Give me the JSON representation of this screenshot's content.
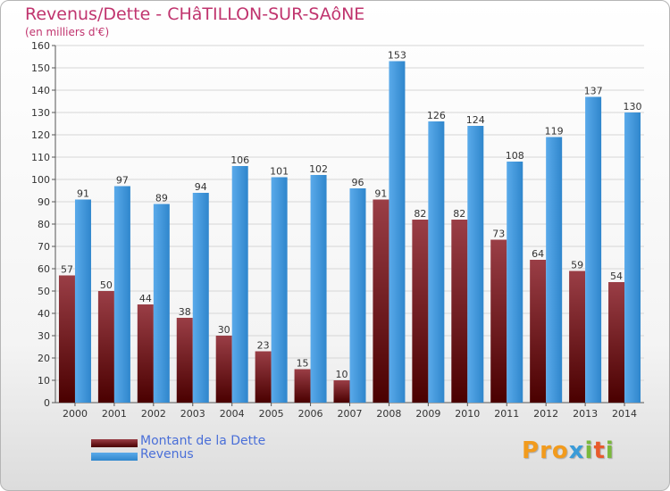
{
  "title": "Revenus/Dette - CHâTILLON-SUR-SAôNE",
  "subtitle": "(en milliers d'€)",
  "logo_text": "Proxiti",
  "colors": {
    "dette_light": "#9a3e46",
    "dette_dark": "#4a0000",
    "revenus_light": "#5aaaea",
    "revenus_dark": "#2f86cc",
    "grid": "#d6d6d6",
    "title": "#c0346e",
    "legend_text": "#4a6fd8"
  },
  "chart_data": {
    "type": "bar",
    "categories": [
      "2000",
      "2001",
      "2002",
      "2003",
      "2004",
      "2005",
      "2006",
      "2007",
      "2008",
      "2009",
      "2010",
      "2011",
      "2012",
      "2013",
      "2014"
    ],
    "series": [
      {
        "name": "Montant de la Dette",
        "values": [
          57,
          50,
          44,
          38,
          30,
          23,
          15,
          10,
          91,
          82,
          82,
          73,
          64,
          59,
          54
        ]
      },
      {
        "name": "Revenus",
        "values": [
          91,
          97,
          89,
          94,
          106,
          101,
          102,
          96,
          153,
          126,
          124,
          108,
          119,
          137,
          130
        ]
      }
    ],
    "ylim": [
      0,
      160
    ],
    "yticks": [
      0,
      10,
      20,
      30,
      40,
      50,
      60,
      70,
      80,
      90,
      100,
      110,
      120,
      130,
      140,
      150,
      160
    ],
    "grid": true,
    "legend_position": "bottom-left"
  }
}
